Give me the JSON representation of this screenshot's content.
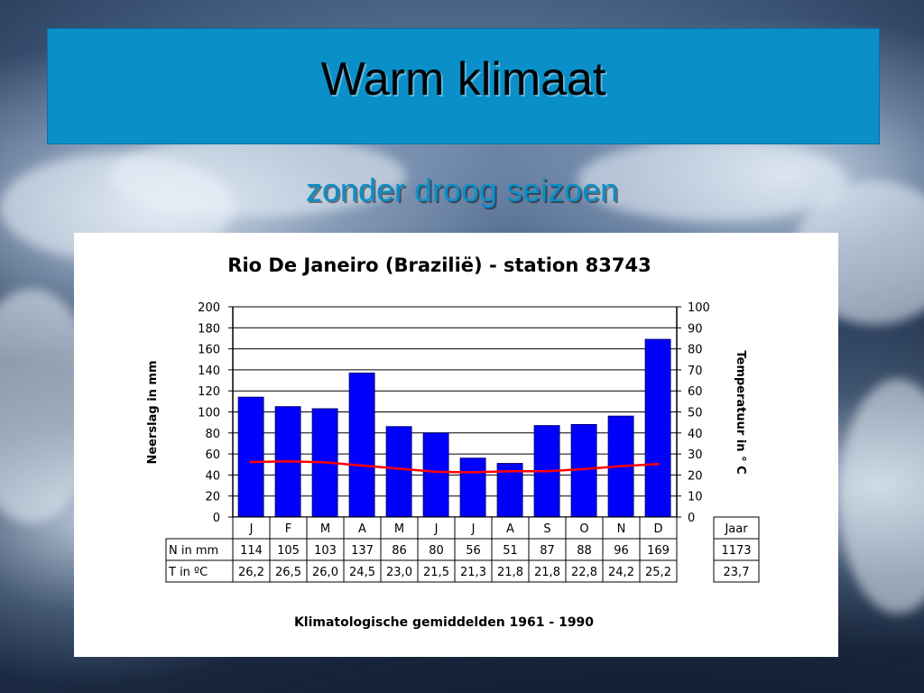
{
  "slide": {
    "title": "Warm klimaat",
    "subtitle": "zonder droog seizoen"
  },
  "colors": {
    "title_bar": "#0a8fc8",
    "bars": "#0000ff",
    "temperature_line": "#ff0000"
  },
  "chart_data": {
    "type": "bar",
    "title": "Rio De Janeiro (Brazilië) - station 83743",
    "footer": "Klimatologische gemiddelden 1961 - 1990",
    "categories": [
      "J",
      "F",
      "M",
      "A",
      "M",
      "J",
      "J",
      "A",
      "S",
      "O",
      "N",
      "D"
    ],
    "series": [
      {
        "name": "N in mm",
        "type": "bar",
        "axis": "left",
        "values": [
          114,
          105,
          103,
          137,
          86,
          80,
          56,
          51,
          87,
          88,
          96,
          169
        ]
      },
      {
        "name": "T in ºC",
        "type": "line",
        "axis": "right",
        "values": [
          26.2,
          26.5,
          26.0,
          24.5,
          23.0,
          21.5,
          21.3,
          21.8,
          21.8,
          22.8,
          24.2,
          25.2
        ]
      }
    ],
    "ylabel": "Neerslag in mm",
    "ylim": [
      0,
      200
    ],
    "yticks": [
      "0",
      "20",
      "40",
      "60",
      "80",
      "100",
      "120",
      "140",
      "160",
      "180",
      "200"
    ],
    "y2label": "Temperatuur in ° C",
    "y2lim": [
      0,
      100
    ],
    "y2ticks": [
      "0",
      "10",
      "20",
      "30",
      "40",
      "50",
      "60",
      "70",
      "80",
      "90",
      "100"
    ],
    "grid": true,
    "table": {
      "row_labels": [
        "N in mm",
        "T in ºC"
      ],
      "rows": [
        [
          "114",
          "105",
          "103",
          "137",
          "86",
          "80",
          "56",
          "51",
          "87",
          "88",
          "96",
          "169"
        ],
        [
          "26,2",
          "26,5",
          "26,0",
          "24,5",
          "23,0",
          "21,5",
          "21,3",
          "21,8",
          "21,8",
          "22,8",
          "24,2",
          "25,2"
        ]
      ],
      "year_header": "Jaar",
      "year_values": [
        "1173",
        "23,7"
      ]
    }
  }
}
